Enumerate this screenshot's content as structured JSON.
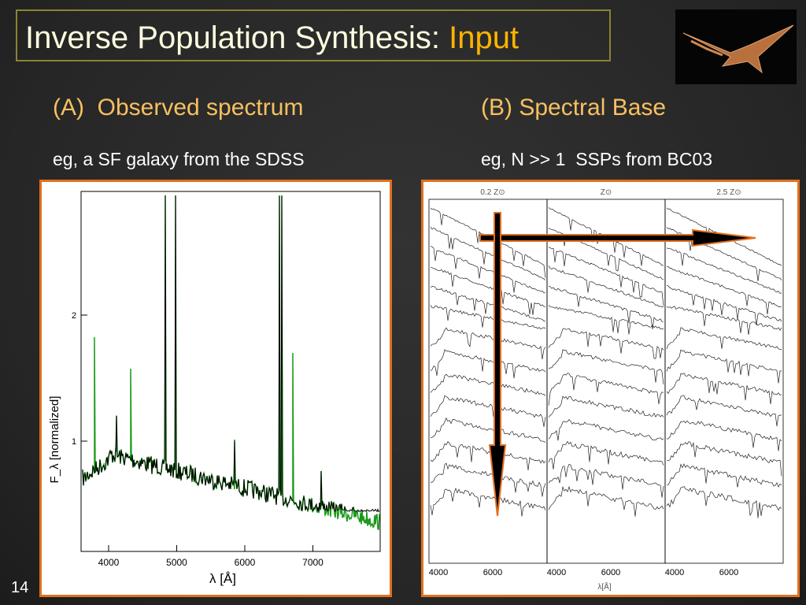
{
  "slide": {
    "title": "Inverse Population Synthesis:",
    "title_highlight": "Input",
    "page_number": "14"
  },
  "left": {
    "heading": "(A)  Observed spectrum",
    "subheading": "eg, a SF galaxy from the SDSS",
    "figure": {
      "x_ticks": [
        "4000",
        "5000",
        "6000",
        "7000"
      ],
      "y_ticks": [
        "1",
        "2"
      ],
      "x_label": "λ [Å]",
      "y_label": "F_λ [normalized]"
    }
  },
  "right": {
    "heading": "(B) Spectral Base",
    "subheading": "eg, N >> 1  SSPs from BC03",
    "figure": {
      "panels": [
        {
          "title": "0.2 Z⊙",
          "x_ticks": [
            "4000",
            "6000"
          ]
        },
        {
          "title": "Z⊙",
          "x_ticks": [
            "4000",
            "6000"
          ]
        },
        {
          "title": "2.5 Z⊙",
          "x_ticks": [
            "4000",
            "6000"
          ]
        }
      ],
      "x_label": "λ[Å]"
    }
  }
}
